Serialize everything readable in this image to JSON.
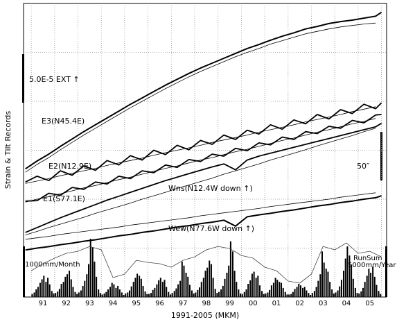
{
  "chart_data": {
    "type": "line",
    "x_label": "1991-2005 (MKM)",
    "y_label": "Strain & Tilt Records",
    "annotations": {
      "strain_scale": "5.0E-5  EXT ↑",
      "tilt_scale": "50″",
      "rain_scale": "1000mm/Month",
      "runsum_name": "RunSum",
      "runsum_scale": "5000mm/Year"
    },
    "xlim": [
      1990.67,
      2006.22
    ],
    "xticks": [
      {
        "value": 1991.5,
        "label": "91"
      },
      {
        "value": 1992.5,
        "label": "92"
      },
      {
        "value": 1993.5,
        "label": "93"
      },
      {
        "value": 1994.5,
        "label": "94"
      },
      {
        "value": 1995.5,
        "label": "95"
      },
      {
        "value": 1996.5,
        "label": "96"
      },
      {
        "value": 1997.5,
        "label": "97"
      },
      {
        "value": 1998.5,
        "label": "98"
      },
      {
        "value": 1999.5,
        "label": "99"
      },
      {
        "value": 2000.5,
        "label": "00"
      },
      {
        "value": 2001.5,
        "label": "01"
      },
      {
        "value": 2002.5,
        "label": "02"
      },
      {
        "value": 2003.5,
        "label": "03"
      },
      {
        "value": 2004.5,
        "label": "04"
      },
      {
        "value": 2005.5,
        "label": "05"
      }
    ],
    "xgrid": [
      1991,
      1992,
      1993,
      1994,
      1995,
      1996,
      1997,
      1998,
      1999,
      2000,
      2001,
      2002,
      2003,
      2004,
      2005,
      2006
    ],
    "ylim": [
      0,
      6
    ],
    "ygrid": [
      1,
      2,
      3,
      4,
      5
    ],
    "y2lim": [
      0,
      5800
    ],
    "y3lim": [
      0,
      29000
    ],
    "x": [
      1990.75,
      1991.25,
      1991.75,
      1992.25,
      1992.75,
      1993.25,
      1993.75,
      1994.25,
      1994.75,
      1995.25,
      1995.75,
      1996.25,
      1996.75,
      1997.25,
      1997.75,
      1998.25,
      1998.75,
      1999.25,
      1999.75,
      2000.25,
      2000.75,
      2001.25,
      2001.75,
      2002.25,
      2002.75,
      2003.25,
      2003.75,
      2004.25,
      2004.75,
      2005.25,
      2005.75,
      2006.0
    ],
    "series": [
      {
        "name": "E3(N45.4E)",
        "color": "#000",
        "linewidth": 2,
        "values": [
          2.62,
          2.78,
          2.92,
          3.08,
          3.23,
          3.38,
          3.52,
          3.66,
          3.8,
          3.94,
          4.07,
          4.2,
          4.33,
          4.45,
          4.57,
          4.68,
          4.78,
          4.88,
          4.98,
          5.08,
          5.16,
          5.25,
          5.33,
          5.4,
          5.48,
          5.53,
          5.59,
          5.63,
          5.66,
          5.7,
          5.74,
          5.82
        ]
      },
      {
        "color": "#000",
        "linewidth": 0.8,
        "values": [
          2.55,
          2.71,
          2.85,
          3.01,
          3.16,
          3.31,
          3.45,
          3.59,
          3.73,
          3.87,
          4.0,
          4.13,
          4.26,
          4.38,
          4.5,
          4.61,
          4.71,
          4.81,
          4.91,
          5.0,
          5.08,
          5.17,
          5.24,
          5.31,
          5.38,
          5.43,
          5.48,
          5.52,
          5.55,
          5.58,
          5.6,
          null
        ]
      },
      {
        "name": "E2(N12.9E)",
        "color": "#000",
        "linewidth": 1.8,
        "values": [
          2.35,
          2.47,
          2.38,
          2.58,
          2.49,
          2.68,
          2.59,
          2.79,
          2.7,
          2.89,
          2.8,
          3.0,
          2.91,
          3.1,
          3.01,
          3.2,
          3.12,
          3.31,
          3.22,
          3.41,
          3.33,
          3.52,
          3.43,
          3.62,
          3.54,
          3.73,
          3.64,
          3.83,
          3.75,
          3.94,
          3.85,
          3.97
        ]
      },
      {
        "color": "#000",
        "linewidth": 0.8,
        "values": [
          2.32,
          2.37,
          2.42,
          2.48,
          2.53,
          2.58,
          2.63,
          2.69,
          2.74,
          2.79,
          2.84,
          2.9,
          2.95,
          3.0,
          3.05,
          3.1,
          3.16,
          3.21,
          3.26,
          3.31,
          3.37,
          3.42,
          3.47,
          3.52,
          3.58,
          3.63,
          3.68,
          3.73,
          3.79,
          3.84,
          3.89,
          null
        ]
      },
      {
        "name": "E1(S77.1E)",
        "color": "#000",
        "linewidth": 1.8,
        "values": [
          1.96,
          1.97,
          2.12,
          2.08,
          2.24,
          2.2,
          2.35,
          2.31,
          2.47,
          2.42,
          2.58,
          2.54,
          2.7,
          2.65,
          2.81,
          2.77,
          2.92,
          2.88,
          3.04,
          2.99,
          3.15,
          3.11,
          3.27,
          3.22,
          3.38,
          3.34,
          3.49,
          3.45,
          3.61,
          3.56,
          3.72,
          3.73
        ]
      },
      {
        "color": "#000",
        "linewidth": 0.8,
        "values": [
          1.94,
          2.0,
          2.05,
          2.11,
          2.17,
          2.23,
          2.28,
          2.34,
          2.4,
          2.45,
          2.51,
          2.57,
          2.63,
          2.68,
          2.74,
          2.8,
          2.85,
          2.91,
          2.97,
          3.02,
          3.08,
          3.14,
          3.2,
          3.25,
          3.31,
          3.37,
          3.42,
          3.48,
          3.54,
          3.59,
          3.65,
          null
        ]
      },
      {
        "name": "Wns(N12.4W down ↑)",
        "color": "#000",
        "linewidth": 1.8,
        "values": [
          1.32,
          1.42,
          1.52,
          1.62,
          1.71,
          1.8,
          1.89,
          1.98,
          2.06,
          2.14,
          2.22,
          2.3,
          2.38,
          2.45,
          2.52,
          2.59,
          2.66,
          2.72,
          2.6,
          2.8,
          2.88,
          2.94,
          3.0,
          3.06,
          3.12,
          3.18,
          3.24,
          3.3,
          3.36,
          3.42,
          3.48,
          3.55
        ]
      },
      {
        "color": "#000",
        "linewidth": 0.8,
        "values": [
          1.27,
          1.34,
          1.42,
          1.49,
          1.56,
          1.63,
          1.71,
          1.78,
          1.85,
          1.92,
          2.0,
          2.07,
          2.14,
          2.22,
          2.29,
          2.36,
          2.43,
          2.51,
          2.58,
          2.65,
          2.72,
          2.8,
          2.87,
          2.94,
          3.01,
          3.09,
          3.16,
          3.23,
          3.3,
          3.38,
          3.45,
          null
        ]
      },
      {
        "name": "Wew(N77.6W down ↑)",
        "color": "#000",
        "linewidth": 2,
        "values": [
          0.96,
          1.0,
          1.03,
          1.07,
          1.1,
          1.14,
          1.17,
          1.21,
          1.25,
          1.28,
          1.32,
          1.35,
          1.39,
          1.43,
          1.46,
          1.5,
          1.53,
          1.57,
          1.45,
          1.64,
          1.68,
          1.71,
          1.75,
          1.78,
          1.82,
          1.86,
          1.89,
          1.93,
          1.96,
          2.0,
          2.03,
          2.07
        ]
      },
      {
        "color": "#000",
        "linewidth": 0.8,
        "values": [
          1.18,
          1.21,
          1.24,
          1.28,
          1.31,
          1.34,
          1.37,
          1.4,
          1.43,
          1.47,
          1.5,
          1.53,
          1.56,
          1.59,
          1.62,
          1.66,
          1.69,
          1.72,
          1.75,
          1.78,
          1.81,
          1.85,
          1.88,
          1.91,
          1.94,
          1.97,
          2.0,
          2.04,
          2.07,
          2.1,
          2.13,
          null
        ]
      },
      {
        "type": "bar",
        "axis": "y2",
        "color": "#000",
        "x": [
          1991.04,
          1991.13,
          1991.21,
          1991.29,
          1991.38,
          1991.46,
          1991.54,
          1991.63,
          1991.71,
          1991.79,
          1991.88,
          1991.96,
          1992.04,
          1992.13,
          1992.21,
          1992.29,
          1992.38,
          1992.46,
          1992.54,
          1992.63,
          1992.71,
          1992.79,
          1992.88,
          1992.96,
          1993.04,
          1993.13,
          1993.21,
          1993.29,
          1993.38,
          1993.46,
          1993.54,
          1993.63,
          1993.71,
          1993.79,
          1993.88,
          1993.96,
          1994.04,
          1994.13,
          1994.21,
          1994.29,
          1994.38,
          1994.46,
          1994.54,
          1994.63,
          1994.71,
          1994.79,
          1994.88,
          1994.96,
          1995.04,
          1995.13,
          1995.21,
          1995.29,
          1995.38,
          1995.46,
          1995.54,
          1995.63,
          1995.71,
          1995.79,
          1995.88,
          1995.96,
          1996.04,
          1996.13,
          1996.21,
          1996.29,
          1996.38,
          1996.46,
          1996.54,
          1996.63,
          1996.71,
          1996.79,
          1996.88,
          1996.96,
          1997.04,
          1997.13,
          1997.21,
          1997.29,
          1997.38,
          1997.46,
          1997.54,
          1997.63,
          1997.71,
          1997.79,
          1997.88,
          1997.96,
          1998.04,
          1998.13,
          1998.21,
          1998.29,
          1998.38,
          1998.46,
          1998.54,
          1998.63,
          1998.71,
          1998.79,
          1998.88,
          1998.96,
          1999.04,
          1999.13,
          1999.21,
          1999.29,
          1999.38,
          1999.46,
          1999.54,
          1999.63,
          1999.71,
          1999.79,
          1999.88,
          1999.96,
          2000.04,
          2000.13,
          2000.21,
          2000.29,
          2000.38,
          2000.46,
          2000.54,
          2000.63,
          2000.71,
          2000.79,
          2000.88,
          2000.96,
          2001.04,
          2001.13,
          2001.21,
          2001.29,
          2001.38,
          2001.46,
          2001.54,
          2001.63,
          2001.71,
          2001.79,
          2001.88,
          2001.96,
          2002.04,
          2002.13,
          2002.21,
          2002.29,
          2002.38,
          2002.46,
          2002.54,
          2002.63,
          2002.71,
          2002.79,
          2002.88,
          2002.96,
          2003.04,
          2003.13,
          2003.21,
          2003.29,
          2003.38,
          2003.46,
          2003.54,
          2003.63,
          2003.71,
          2003.79,
          2003.88,
          2003.96,
          2004.04,
          2004.13,
          2004.21,
          2004.29,
          2004.38,
          2004.46,
          2004.54,
          2004.63,
          2004.71,
          2004.79,
          2004.88,
          2004.96,
          2005.04,
          2005.13,
          2005.21,
          2005.29,
          2005.38,
          2005.46,
          2005.54,
          2005.63,
          2005.71,
          2005.79,
          2005.88,
          2005.96
        ],
        "values": [
          60,
          90,
          150,
          200,
          280,
          350,
          420,
          300,
          380,
          250,
          120,
          70,
          80,
          110,
          160,
          260,
          300,
          400,
          450,
          520,
          350,
          200,
          100,
          60,
          90,
          130,
          220,
          320,
          450,
          650,
          1150,
          980,
          700,
          400,
          150,
          80,
          50,
          70,
          100,
          150,
          200,
          280,
          250,
          180,
          220,
          150,
          90,
          40,
          70,
          90,
          130,
          210,
          300,
          380,
          460,
          420,
          360,
          220,
          110,
          60,
          60,
          80,
          140,
          180,
          250,
          330,
          380,
          300,
          340,
          200,
          100,
          50,
          80,
          120,
          170,
          250,
          320,
          700,
          620,
          480,
          400,
          240,
          130,
          70,
          90,
          140,
          190,
          300,
          380,
          520,
          580,
          720,
          650,
          380,
          160,
          80,
          100,
          150,
          220,
          360,
          480,
          620,
          1100,
          900,
          520,
          300,
          150,
          70,
          60,
          100,
          150,
          260,
          330,
          460,
          500,
          380,
          420,
          230,
          120,
          60,
          70,
          90,
          140,
          230,
          280,
          380,
          340,
          300,
          280,
          180,
          100,
          50,
          50,
          60,
          100,
          160,
          200,
          260,
          230,
          180,
          200,
          130,
          80,
          40,
          80,
          120,
          200,
          320,
          450,
          900,
          680,
          560,
          500,
          300,
          150,
          70,
          90,
          130,
          210,
          340,
          520,
          760,
          1000,
          820,
          640,
          360,
          180,
          80,
          70,
          110,
          180,
          300,
          420,
          560,
          480,
          600,
          400,
          240,
          120,
          60
        ]
      },
      {
        "axis": "y3",
        "color": "#444",
        "linewidth": 0.8,
        "x": [
          1991.0,
          1991.5,
          1992.0,
          1992.5,
          1993.0,
          1993.5,
          1994.0,
          1994.5,
          1995.0,
          1995.5,
          1996.0,
          1996.5,
          1997.0,
          1997.5,
          1998.0,
          1998.5,
          1999.0,
          1999.5,
          2000.0,
          2000.5,
          2001.0,
          2001.5,
          2002.0,
          2002.5,
          2003.0,
          2003.5,
          2004.0,
          2004.5,
          2005.0,
          2005.5,
          2006.0
        ],
        "values": [
          2600,
          3290,
          3840,
          4320,
          4520,
          5000,
          4660,
          1920,
          2260,
          3630,
          3420,
          3290,
          2950,
          3630,
          3970,
          4660,
          5000,
          4790,
          4110,
          3840,
          2950,
          2600,
          1580,
          1370,
          2260,
          5000,
          4660,
          5340,
          4320,
          4520,
          3970
        ]
      }
    ]
  }
}
